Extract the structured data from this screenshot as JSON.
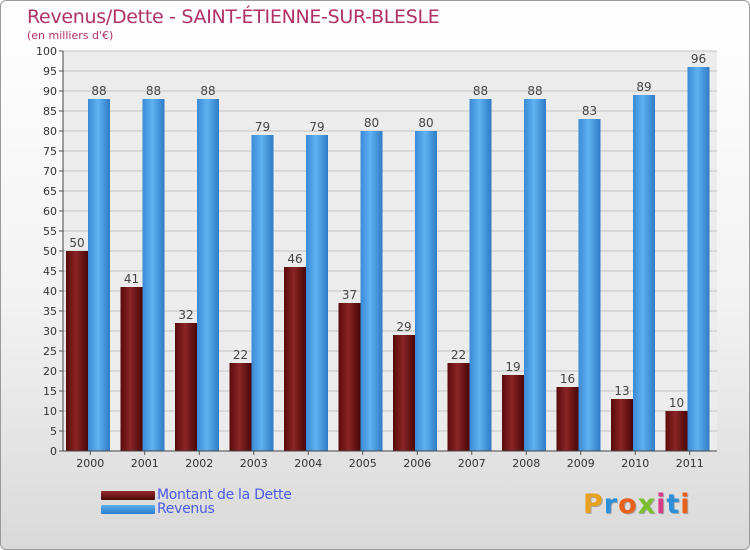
{
  "chart_data": {
    "type": "bar",
    "title": "Revenus/Dette - SAINT-ÉTIENNE-SUR-BLESLE",
    "subtitle": "(en milliers d'€)",
    "categories": [
      "2000",
      "2001",
      "2002",
      "2003",
      "2004",
      "2005",
      "2006",
      "2007",
      "2008",
      "2009",
      "2010",
      "2011"
    ],
    "series": [
      {
        "name": "Montant de la Dette",
        "values": [
          50,
          41,
          32,
          22,
          46,
          37,
          29,
          22,
          19,
          16,
          13,
          10
        ],
        "color": "#7a1a1a"
      },
      {
        "name": "Revenus",
        "values": [
          88,
          88,
          88,
          79,
          79,
          80,
          80,
          88,
          88,
          83,
          89,
          96
        ],
        "color": "#3f9be0"
      }
    ],
    "ylim": [
      0,
      100
    ],
    "ytick_step": 5,
    "grid": true,
    "legend_position": "bottom-left"
  },
  "logo": {
    "text": "Proxiti",
    "letters": [
      "P",
      "r",
      "o",
      "x",
      "i",
      "t",
      "i"
    ],
    "colors": [
      "#e8a020",
      "#2a8fd8",
      "#e8601a",
      "#7bbf2a",
      "#d83a8a",
      "#2a8fd8",
      "#e8601a"
    ]
  }
}
